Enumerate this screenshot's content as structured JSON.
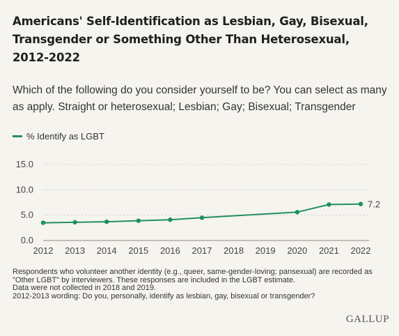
{
  "title": "Americans' Self-Identification as Lesbian, Gay, Bisexual, Transgender or Something Other Than Heterosexual, 2012-2022",
  "subtitle": "Which of the following do you consider yourself to be? You can select as many as apply. Straight or heterosexual; Lesbian; Gay; Bisexual; Transgender",
  "notes": [
    "Respondents who volunteer another identity (e.g., queer, same-gender-loving; pansexual) are recorded as \"Other LGBT\" by interviewers. These responses are included in the LGBT estimate.",
    "Data were not collected in 2018 and 2019.",
    "2012-2013 wording: Do you, personally, identify as lesbian, gay, bisexual or transgender?"
  ],
  "brand": "GALLUP",
  "colors": {
    "series": "#1f8f63",
    "grid": "#cfcfcf",
    "background": "#f6f4ee"
  },
  "chart_data": {
    "type": "line",
    "title": "Americans' Self-Identification as Lesbian, Gay, Bisexual, Transgender or Something Other Than Heterosexual, 2012-2022",
    "xlabel": "",
    "ylabel": "",
    "x_ticks": [
      "2012",
      "2013",
      "2014",
      "2015",
      "2016",
      "2017",
      "2018",
      "2019",
      "2020",
      "2021",
      "2022"
    ],
    "y_ticks": [
      "0.0",
      "5.0",
      "10.0",
      "15.0"
    ],
    "ylim": [
      0,
      15
    ],
    "grid": true,
    "legend_position": "top-left",
    "series": [
      {
        "name": "% Identify as LGBT",
        "x": [
          "2012",
          "2013",
          "2014",
          "2015",
          "2016",
          "2017",
          "2020",
          "2021",
          "2022"
        ],
        "values": [
          3.5,
          3.6,
          3.7,
          3.9,
          4.1,
          4.5,
          5.6,
          7.1,
          7.2
        ],
        "markers_x": [
          "2012",
          "2013",
          "2014",
          "2015",
          "2016",
          "2017",
          "2020",
          "2021",
          "2022"
        ]
      }
    ],
    "end_label": "7.2"
  }
}
